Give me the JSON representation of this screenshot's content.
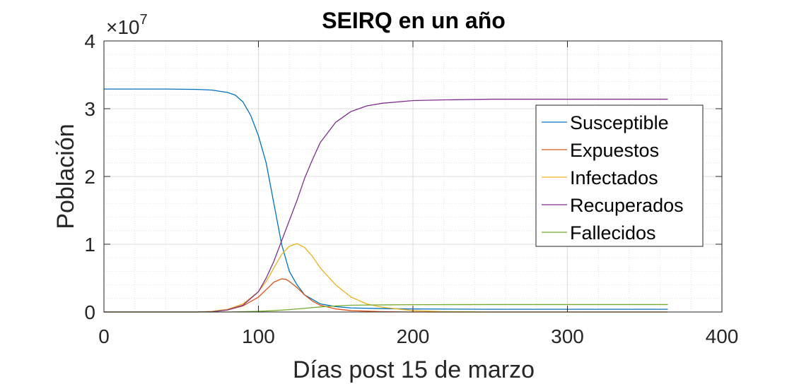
{
  "chart_data": {
    "type": "line",
    "title": "SEIRQ en un año",
    "xlabel": "Días post 15 de marzo",
    "ylabel": "Población",
    "xlim": [
      0,
      400
    ],
    "ylim": [
      0,
      4
    ],
    "y_multiplier_label": {
      "base": "×10",
      "exponent": "7"
    },
    "xticks": [
      0,
      100,
      200,
      300,
      400
    ],
    "xtick_labels": [
      "0",
      "100",
      "200",
      "300",
      "400"
    ],
    "yticks": [
      0,
      1,
      2,
      3,
      4
    ],
    "ytick_labels": [
      "0",
      "1",
      "2",
      "3",
      "4"
    ],
    "grid": true,
    "minor_grid": true,
    "legend_position": "right",
    "series": [
      {
        "name": "Susceptible",
        "color": "#0072BD",
        "points": [
          [
            0,
            3.29
          ],
          [
            40,
            3.29
          ],
          [
            60,
            3.285
          ],
          [
            70,
            3.275
          ],
          [
            80,
            3.24
          ],
          [
            85,
            3.2
          ],
          [
            90,
            3.1
          ],
          [
            95,
            2.9
          ],
          [
            100,
            2.6
          ],
          [
            105,
            2.2
          ],
          [
            110,
            1.6
          ],
          [
            115,
            1.0
          ],
          [
            120,
            0.6
          ],
          [
            125,
            0.4
          ],
          [
            130,
            0.25
          ],
          [
            140,
            0.12
          ],
          [
            150,
            0.08
          ],
          [
            160,
            0.06
          ],
          [
            180,
            0.05
          ],
          [
            200,
            0.045
          ],
          [
            250,
            0.04
          ],
          [
            365,
            0.04
          ]
        ]
      },
      {
        "name": "Expuestos",
        "color": "#D95319",
        "points": [
          [
            0,
            0
          ],
          [
            60,
            0
          ],
          [
            70,
            0.005
          ],
          [
            80,
            0.03
          ],
          [
            90,
            0.09
          ],
          [
            100,
            0.22
          ],
          [
            105,
            0.33
          ],
          [
            110,
            0.44
          ],
          [
            115,
            0.49
          ],
          [
            118,
            0.48
          ],
          [
            120,
            0.45
          ],
          [
            125,
            0.36
          ],
          [
            130,
            0.25
          ],
          [
            135,
            0.16
          ],
          [
            140,
            0.1
          ],
          [
            150,
            0.045
          ],
          [
            160,
            0.02
          ],
          [
            180,
            0.005
          ],
          [
            200,
            0
          ],
          [
            365,
            0
          ]
        ]
      },
      {
        "name": "Infectados",
        "color": "#EDB120",
        "points": [
          [
            0,
            0
          ],
          [
            60,
            0
          ],
          [
            70,
            0.01
          ],
          [
            80,
            0.04
          ],
          [
            90,
            0.12
          ],
          [
            100,
            0.3
          ],
          [
            105,
            0.45
          ],
          [
            110,
            0.65
          ],
          [
            115,
            0.85
          ],
          [
            120,
            0.97
          ],
          [
            125,
            1.01
          ],
          [
            130,
            0.95
          ],
          [
            135,
            0.82
          ],
          [
            140,
            0.65
          ],
          [
            150,
            0.4
          ],
          [
            160,
            0.22
          ],
          [
            170,
            0.12
          ],
          [
            180,
            0.07
          ],
          [
            200,
            0.02
          ],
          [
            220,
            0.005
          ],
          [
            250,
            0
          ],
          [
            365,
            0
          ]
        ]
      },
      {
        "name": "Recuperados",
        "color": "#7E2F8E",
        "points": [
          [
            0,
            0
          ],
          [
            60,
            0
          ],
          [
            70,
            0.005
          ],
          [
            80,
            0.03
          ],
          [
            90,
            0.1
          ],
          [
            100,
            0.3
          ],
          [
            105,
            0.5
          ],
          [
            110,
            0.75
          ],
          [
            115,
            1.05
          ],
          [
            120,
            1.35
          ],
          [
            125,
            1.65
          ],
          [
            130,
            1.98
          ],
          [
            135,
            2.25
          ],
          [
            140,
            2.5
          ],
          [
            150,
            2.8
          ],
          [
            160,
            2.96
          ],
          [
            170,
            3.04
          ],
          [
            180,
            3.08
          ],
          [
            200,
            3.12
          ],
          [
            220,
            3.13
          ],
          [
            250,
            3.14
          ],
          [
            300,
            3.14
          ],
          [
            365,
            3.14
          ]
        ]
      },
      {
        "name": "Fallecidos",
        "color": "#77AC30",
        "points": [
          [
            0,
            0
          ],
          [
            60,
            0
          ],
          [
            80,
            0
          ],
          [
            90,
            0.005
          ],
          [
            100,
            0.01
          ],
          [
            110,
            0.02
          ],
          [
            120,
            0.035
          ],
          [
            130,
            0.055
          ],
          [
            140,
            0.075
          ],
          [
            150,
            0.09
          ],
          [
            160,
            0.1
          ],
          [
            180,
            0.105
          ],
          [
            200,
            0.108
          ],
          [
            250,
            0.11
          ],
          [
            365,
            0.11
          ]
        ]
      }
    ]
  }
}
